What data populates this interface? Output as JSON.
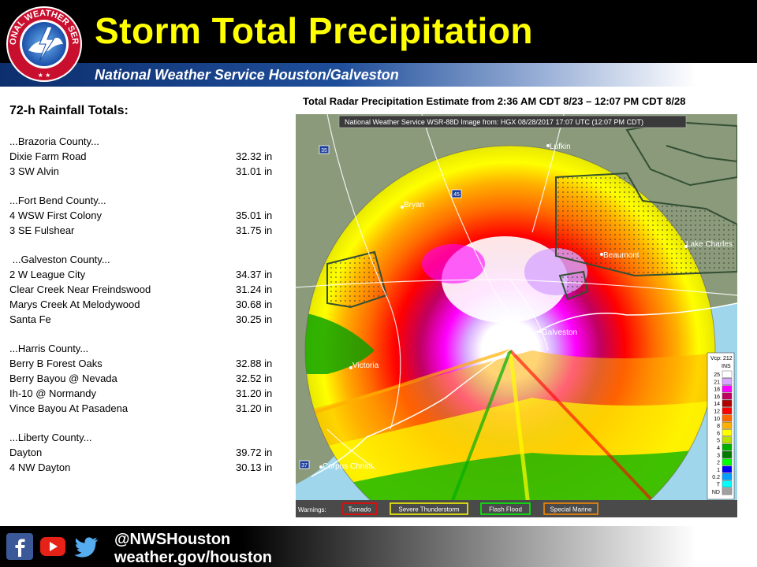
{
  "header": {
    "title": "Storm Total Precipitation",
    "subtitle": "National Weather Service Houston/Galveston",
    "logo_text": "NATIONAL WEATHER SERVICE"
  },
  "rainfall": {
    "title": "72-h Rainfall Totals:",
    "counties": [
      {
        "name": "...Brazoria County...",
        "sites": [
          {
            "site": "Dixie Farm Road",
            "total": "32.32 in"
          },
          {
            "site": "3 SW Alvin",
            "total": "31.01 in"
          }
        ]
      },
      {
        "name": "...Fort Bend County...",
        "sites": [
          {
            "site": "4 WSW First Colony",
            "total": "35.01 in"
          },
          {
            "site": "3 SE Fulshear",
            "total": "31.75 in"
          }
        ]
      },
      {
        "name": " ...Galveston County...",
        "sites": [
          {
            "site": "2 W League City",
            "total": "34.37 in"
          },
          {
            "site": "Clear Creek Near Freindswood",
            "total": "31.24 in"
          },
          {
            "site": "Marys Creek At Melodywood",
            "total": "30.68 in"
          },
          {
            "site": "Santa Fe",
            "total": "30.25 in"
          }
        ]
      },
      {
        "name": "...Harris County...",
        "sites": [
          {
            "site": "Berry B Forest Oaks",
            "total": "32.88 in"
          },
          {
            "site": "Berry Bayou @ Nevada",
            "total": "32.52 in"
          },
          {
            "site": "Ih-10 @ Normandy",
            "total": "31.20 in"
          },
          {
            "site": "Vince Bayou At Pasadena",
            "total": "31.20 in"
          }
        ]
      },
      {
        "name": "...Liberty County...",
        "sites": [
          {
            "site": "Dayton",
            "total": "39.72 in"
          },
          {
            "site": "4 NW Dayton",
            "total": "30.13 in"
          }
        ]
      }
    ]
  },
  "map": {
    "title": "Total Radar Precipitation Estimate from 2:36 AM CDT 8/23 – 12:07 PM CDT 8/28",
    "banner": "National Weather Service WSR-88D Image from: HGX 08/28/2017 17:07 UTC (12:07 PM CDT)",
    "cities": [
      "Lufkin",
      "Bryan",
      "Beaumont",
      "Lake Charles",
      "Galveston",
      "Victoria",
      "Corpus Christi"
    ],
    "highways": [
      "35",
      "45",
      "37"
    ],
    "legend": {
      "header": "Vcp: 212",
      "unit": "INS",
      "levels": [
        {
          "label": "25",
          "color": "#ffffff"
        },
        {
          "label": "21",
          "color": "#d8a8ff"
        },
        {
          "label": "18",
          "color": "#ff00ff"
        },
        {
          "label": "16",
          "color": "#c00060"
        },
        {
          "label": "14",
          "color": "#b00000"
        },
        {
          "label": "12",
          "color": "#ff0000"
        },
        {
          "label": "10",
          "color": "#ff6a00"
        },
        {
          "label": "8",
          "color": "#ffb000"
        },
        {
          "label": "6",
          "color": "#ffff00"
        },
        {
          "label": "5",
          "color": "#b8e000"
        },
        {
          "label": "4",
          "color": "#00b000"
        },
        {
          "label": "3",
          "color": "#007a00"
        },
        {
          "label": "2",
          "color": "#00ff00"
        },
        {
          "label": "1",
          "color": "#0000ff"
        },
        {
          "label": "0.2",
          "color": "#00a0ff"
        },
        {
          "label": "T",
          "color": "#00ffff"
        },
        {
          "label": "ND",
          "color": "#a0a0a0"
        }
      ]
    },
    "warnings": {
      "label": "Warnings:",
      "items": [
        {
          "text": "Tornado",
          "color": "#ff0000"
        },
        {
          "text": "Severe Thunderstorm",
          "color": "#ffff00"
        },
        {
          "text": "Flash Flood",
          "color": "#00ff00"
        },
        {
          "text": "Special Marine",
          "color": "#ff8c00"
        }
      ]
    },
    "colors": {
      "land": "#8a9a7a",
      "gulf": "#9fd6ec",
      "watch_outline": "#334f33"
    }
  },
  "footer": {
    "handle": "@NWSHouston",
    "url": "weather.gov/houston",
    "icons": [
      "facebook-icon",
      "youtube-icon",
      "twitter-icon"
    ]
  }
}
